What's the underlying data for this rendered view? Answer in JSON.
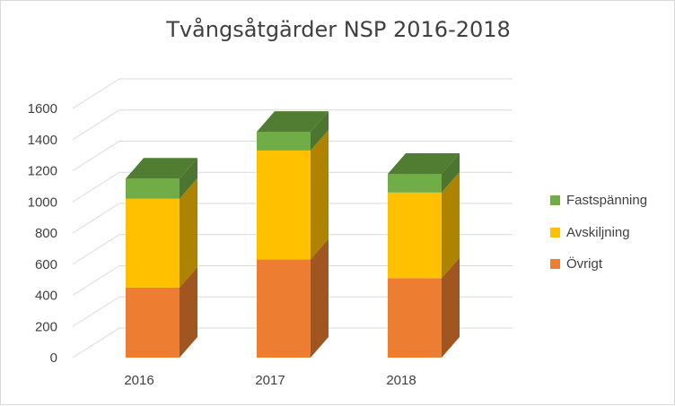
{
  "chart_data": {
    "type": "bar",
    "stacked": true,
    "three_d": true,
    "title": "Tvångsåtgärder NSP 2016-2018",
    "categories": [
      "2016",
      "2017",
      "2018"
    ],
    "series": [
      {
        "name": "Övrigt",
        "values": [
          450,
          630,
          510
        ],
        "color": "#ED7D31"
      },
      {
        "name": "Avskiljning",
        "values": [
          570,
          700,
          550
        ],
        "color": "#FFC000"
      },
      {
        "name": "Fastspänning",
        "values": [
          130,
          120,
          120
        ],
        "color": "#70AD47"
      }
    ],
    "ylim": [
      0,
      1600
    ],
    "yticks": [
      "0",
      "200",
      "400",
      "600",
      "800",
      "1000",
      "1200",
      "1400",
      "1600"
    ],
    "grid": true,
    "legend_position": "right"
  }
}
